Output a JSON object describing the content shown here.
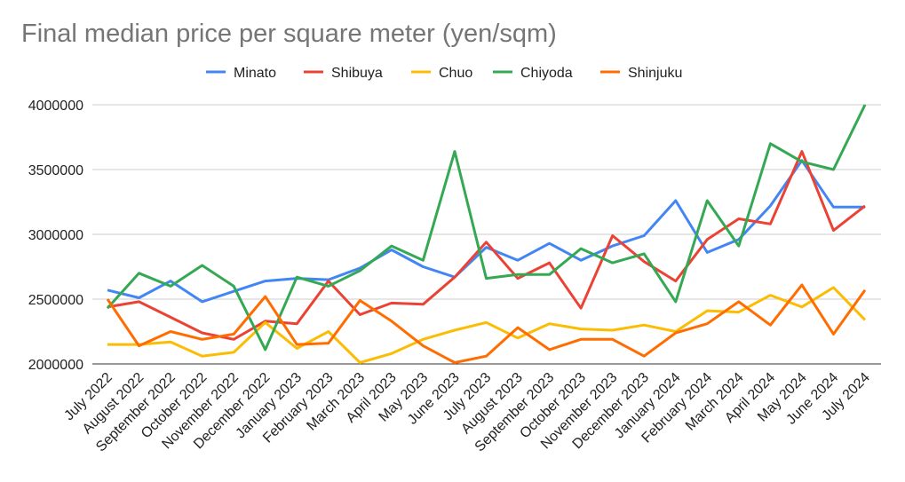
{
  "chart_data": {
    "type": "line",
    "title": "Final median price per square meter (yen/sqm)",
    "xlabel": "",
    "ylabel": "",
    "ylim": [
      2000000,
      4000000
    ],
    "yticks": [
      "2000000",
      "2500000",
      "3000000",
      "3500000",
      "4000000"
    ],
    "grid": true,
    "legend_position": "top",
    "categories": [
      "July 2022",
      "August 2022",
      "September 2022",
      "October 2022",
      "November 2022",
      "December 2022",
      "January 2023",
      "February 2023",
      "March 2023",
      "April 2023",
      "May 2023",
      "June 2023",
      "July 2023",
      "August 2023",
      "September 2023",
      "October 2023",
      "November 2023",
      "December 2023",
      "January 2024",
      "February 2024",
      "March 2024",
      "April 2024",
      "May 2024",
      "June 2024",
      "July 2024"
    ],
    "series": [
      {
        "name": "Minato",
        "color": "#4285F4",
        "values": [
          2570000,
          2510000,
          2640000,
          2480000,
          2560000,
          2640000,
          2660000,
          2650000,
          2740000,
          2880000,
          2750000,
          2670000,
          2900000,
          2800000,
          2930000,
          2800000,
          2910000,
          2990000,
          3260000,
          2860000,
          2960000,
          3220000,
          3570000,
          3210000,
          3210000
        ]
      },
      {
        "name": "Shibuya",
        "color": "#EA4335",
        "values": [
          2440000,
          2480000,
          2360000,
          2240000,
          2190000,
          2330000,
          2310000,
          2640000,
          2380000,
          2470000,
          2460000,
          2670000,
          2940000,
          2660000,
          2780000,
          2430000,
          2990000,
          2790000,
          2640000,
          2960000,
          3120000,
          3080000,
          3640000,
          3030000,
          3220000
        ]
      },
      {
        "name": "Chuo",
        "color": "#FBBC04",
        "values": [
          2150000,
          2150000,
          2170000,
          2060000,
          2090000,
          2320000,
          2120000,
          2250000,
          2010000,
          2080000,
          2190000,
          2260000,
          2320000,
          2200000,
          2310000,
          2270000,
          2260000,
          2300000,
          2250000,
          2410000,
          2400000,
          2530000,
          2440000,
          2590000,
          2340000
        ]
      },
      {
        "name": "Chiyoda",
        "color": "#34A853",
        "values": [
          2430000,
          2700000,
          2600000,
          2760000,
          2600000,
          2110000,
          2670000,
          2600000,
          2720000,
          2910000,
          2800000,
          3640000,
          2660000,
          2690000,
          2690000,
          2890000,
          2780000,
          2850000,
          2480000,
          3260000,
          2910000,
          3700000,
          3560000,
          3500000,
          4000000
        ]
      },
      {
        "name": "Shinjuku",
        "color": "#FF6D01",
        "values": [
          2500000,
          2140000,
          2250000,
          2190000,
          2230000,
          2520000,
          2150000,
          2160000,
          2490000,
          2330000,
          2140000,
          2010000,
          2060000,
          2280000,
          2110000,
          2190000,
          2190000,
          2060000,
          2240000,
          2310000,
          2480000,
          2300000,
          2610000,
          2230000,
          2570000
        ]
      }
    ]
  }
}
